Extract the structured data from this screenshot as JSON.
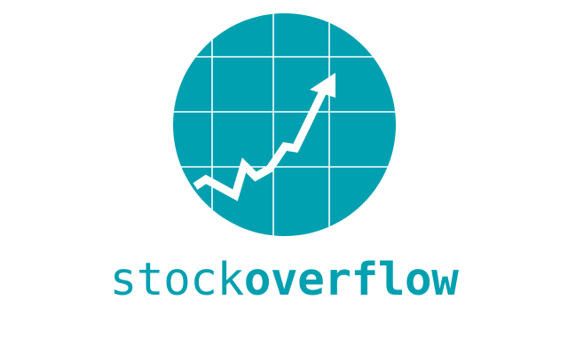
{
  "brand": {
    "name_light": "stock",
    "name_bold": "overflow",
    "color": "#00a0b0",
    "background": "#ffffff",
    "icon": "rising-chart-globe-icon"
  }
}
